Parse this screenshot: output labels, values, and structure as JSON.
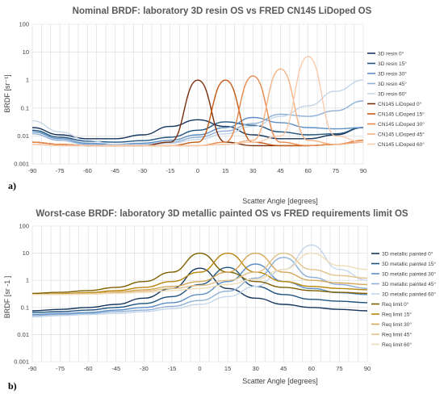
{
  "chart_data": [
    {
      "type": "line",
      "panel_label": "a)",
      "title": "Nominal BRDF: laboratory 3D resin OS vs FRED CN145 LiDoped OS",
      "xlabel": "Scatter Angle [degrees]",
      "ylabel": "BRDF [sr⁻¹]",
      "yscale": "log",
      "xlim": [
        -90,
        90
      ],
      "ylim": [
        0.001,
        100
      ],
      "xticks": [
        "-90",
        "-75",
        "-60",
        "-45",
        "-30",
        "-15",
        "0",
        "15",
        "30",
        "45",
        "60",
        "75",
        "90"
      ],
      "yticks": [
        "100",
        "10",
        "1",
        "0.1",
        "0.01",
        "0.001"
      ],
      "legend_position": "right",
      "grid": true,
      "x": [
        -90,
        -75,
        -60,
        -45,
        -30,
        -15,
        0,
        15,
        30,
        45,
        60,
        75,
        90
      ],
      "series": [
        {
          "name": "3D resin 0°",
          "color": "#17375e",
          "values": [
            0.02,
            0.011,
            0.008,
            0.008,
            0.011,
            0.022,
            0.038,
            0.022,
            0.011,
            0.008,
            0.008,
            0.011,
            0.02
          ]
        },
        {
          "name": "3D resin 15°",
          "color": "#1f5480",
          "values": [
            0.016,
            0.009,
            0.0065,
            0.006,
            0.0068,
            0.009,
            0.016,
            0.032,
            0.024,
            0.014,
            0.011,
            0.012,
            0.02
          ]
        },
        {
          "name": "3D resin 30°",
          "color": "#5d8fc4",
          "values": [
            0.014,
            0.008,
            0.0055,
            0.005,
            0.0055,
            0.007,
            0.011,
            0.02,
            0.046,
            0.03,
            0.02,
            0.018,
            0.02
          ]
        },
        {
          "name": "3D resin 45°",
          "color": "#8fb0d6",
          "values": [
            0.012,
            0.007,
            0.005,
            0.0045,
            0.005,
            0.006,
            0.009,
            0.015,
            0.028,
            0.06,
            0.05,
            0.08,
            0.18
          ]
        },
        {
          "name": "3D resin 60°",
          "color": "#c5d6ea",
          "values": [
            0.035,
            0.014,
            0.007,
            0.005,
            0.0048,
            0.0055,
            0.0075,
            0.012,
            0.022,
            0.05,
            0.12,
            0.4,
            1.0
          ]
        },
        {
          "name": "CN145 LiDoped 0°",
          "color": "#7a2d0a",
          "values": [
            0.006,
            0.005,
            0.0045,
            0.0045,
            0.0045,
            0.006,
            1.0,
            0.006,
            0.0045,
            0.0045,
            0.0045,
            0.005,
            0.006
          ]
        },
        {
          "name": "CN145 LiDoped 15°",
          "color": "#c55a11",
          "values": [
            0.006,
            0.005,
            0.0045,
            0.0045,
            0.0045,
            0.0045,
            0.006,
            1.0,
            0.006,
            0.0045,
            0.0045,
            0.005,
            0.007
          ]
        },
        {
          "name": "CN145 LiDoped 30°",
          "color": "#e8884a",
          "values": [
            0.006,
            0.005,
            0.0045,
            0.0045,
            0.0045,
            0.0045,
            0.0045,
            0.006,
            1.4,
            0.006,
            0.0045,
            0.005,
            0.007
          ]
        },
        {
          "name": "CN145 LiDoped 45°",
          "color": "#f4b183",
          "values": [
            0.005,
            0.0045,
            0.0045,
            0.0045,
            0.0045,
            0.0045,
            0.0045,
            0.005,
            0.007,
            2.5,
            0.007,
            0.005,
            0.006
          ]
        },
        {
          "name": "CN145 LiDoped 60°",
          "color": "#f8cbad",
          "values": [
            0.005,
            0.0045,
            0.0045,
            0.0045,
            0.0045,
            0.0045,
            0.0045,
            0.005,
            0.006,
            0.01,
            7.0,
            0.01,
            0.006
          ]
        }
      ]
    },
    {
      "type": "line",
      "panel_label": "b)",
      "title": "Worst-case BRDF: laboratory 3D metallic painted OS vs FRED requirements limit OS",
      "xlabel": "Scatter Angle [degrees]",
      "ylabel": "BRDF [sr -1 ]",
      "yscale": "log",
      "xlim": [
        -90,
        90
      ],
      "ylim": [
        0.001,
        100
      ],
      "xticks": [
        "-90",
        "-75",
        "-60",
        "-45",
        "-30",
        "-15",
        "0",
        "15",
        "30",
        "45",
        "60",
        "75",
        "90"
      ],
      "yticks": [
        "100",
        "10",
        "1",
        "0.1",
        "0.01",
        "0.001"
      ],
      "legend_position": "right",
      "grid": true,
      "x": [
        -90,
        -75,
        -60,
        -45,
        -30,
        -15,
        0,
        15,
        30,
        45,
        60,
        75,
        90
      ],
      "series": [
        {
          "name": "3D metallic painted 0°",
          "color": "#17375e",
          "values": [
            0.075,
            0.085,
            0.1,
            0.13,
            0.22,
            0.5,
            2.8,
            0.5,
            0.22,
            0.13,
            0.1,
            0.085,
            0.075
          ]
        },
        {
          "name": "3D metallic painted 15°",
          "color": "#1f5480",
          "values": [
            0.065,
            0.07,
            0.08,
            0.1,
            0.14,
            0.25,
            0.7,
            3.0,
            0.6,
            0.3,
            0.2,
            0.17,
            0.15
          ]
        },
        {
          "name": "3D metallic painted 30°",
          "color": "#5d8fc4",
          "values": [
            0.055,
            0.06,
            0.065,
            0.08,
            0.1,
            0.15,
            0.3,
            0.9,
            4.0,
            0.9,
            0.5,
            0.35,
            0.3
          ]
        },
        {
          "name": "3D metallic painted 45°",
          "color": "#8fb0d6",
          "values": [
            0.05,
            0.055,
            0.06,
            0.07,
            0.08,
            0.11,
            0.18,
            0.4,
            1.2,
            7.0,
            1.3,
            0.7,
            0.5
          ]
        },
        {
          "name": "3D metallic painted 60°",
          "color": "#c5d6ea",
          "values": [
            0.045,
            0.05,
            0.055,
            0.06,
            0.07,
            0.09,
            0.13,
            0.25,
            0.6,
            2.5,
            20.0,
            2.5,
            1.0
          ]
        },
        {
          "name": "Req limit 0°",
          "color": "#7f6000",
          "values": [
            0.33,
            0.36,
            0.42,
            0.55,
            0.9,
            2.0,
            10.0,
            2.0,
            0.9,
            0.55,
            0.42,
            0.36,
            0.33
          ]
        },
        {
          "name": "Req limit 15°",
          "color": "#b8860b",
          "values": [
            0.3,
            0.32,
            0.35,
            0.42,
            0.55,
            0.9,
            2.0,
            10.0,
            2.0,
            0.9,
            0.6,
            0.5,
            0.45
          ]
        },
        {
          "name": "Req limit 30°",
          "color": "#d4a85a",
          "values": [
            0.3,
            0.31,
            0.33,
            0.37,
            0.45,
            0.6,
            0.9,
            2.0,
            10.0,
            2.0,
            1.0,
            0.8,
            0.7
          ]
        },
        {
          "name": "Req limit 45°",
          "color": "#e2c18a",
          "values": [
            0.3,
            0.3,
            0.32,
            0.35,
            0.4,
            0.5,
            0.65,
            1.0,
            2.0,
            10.0,
            2.5,
            1.5,
            1.2
          ]
        },
        {
          "name": "Req limit 60°",
          "color": "#efdcb8",
          "values": [
            0.3,
            0.3,
            0.31,
            0.33,
            0.36,
            0.42,
            0.5,
            0.7,
            1.1,
            2.5,
            10.0,
            3.5,
            2.5
          ]
        }
      ]
    }
  ]
}
